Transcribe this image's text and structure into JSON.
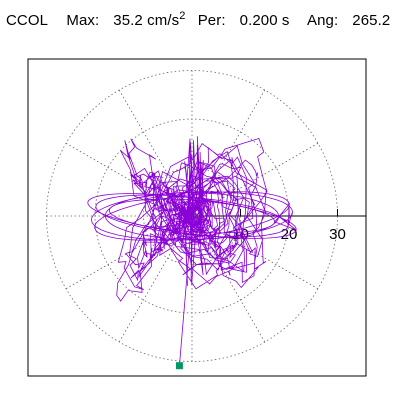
{
  "header": {
    "station": "CCOL",
    "max_label": "Max:",
    "max_value": "35.2 cm/s",
    "max_exp": "2",
    "per_label": "Per:",
    "per_value": "0.200 s",
    "ang_label": "Ang:",
    "ang_value": "265.2"
  },
  "chart_data": {
    "type": "polar-trace",
    "title": "CCOL",
    "max_amplitude": 35.2,
    "units": "cm/s^2",
    "period_s": 0.2,
    "angle_deg": 265.2,
    "radial_ticks": [
      10,
      20,
      30
    ],
    "radial_tick_labels": [
      "10",
      "20",
      "30"
    ],
    "r_max": 35.2,
    "grid": "dotted polar (rings at 10, 20, 30; spokes every 30 degrees)",
    "trace_color": "#8B00D6",
    "marker_color": "#009966",
    "marker_angle_deg": 265.2,
    "marker_radius": 35.2
  }
}
